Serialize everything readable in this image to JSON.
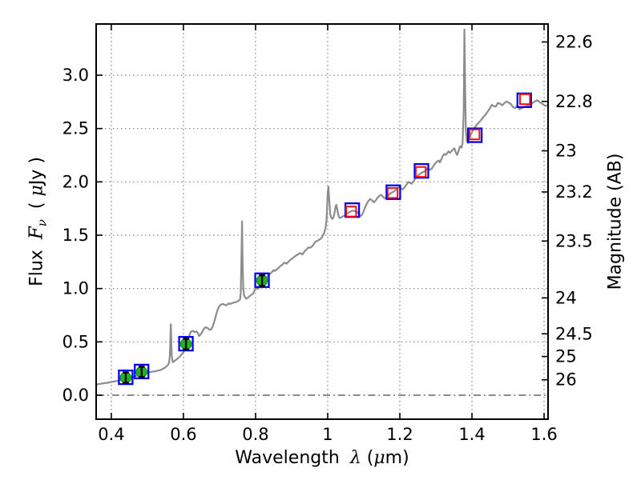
{
  "figure_title": "",
  "axes": {
    "x": {
      "label_word": "Wavelength",
      "label_symbol": "λ",
      "unit_open": "(",
      "unit_mu": "μ",
      "unit_rest": "m)",
      "tick_values": [
        0.4,
        0.6,
        0.8,
        1.0,
        1.2,
        1.4,
        1.6
      ],
      "tick_labels": [
        "0.4",
        "0.6",
        "0.8",
        "1",
        "1.2",
        "1.4",
        "1.6"
      ]
    },
    "y_left": {
      "label_word": "Flux",
      "label_symbol": "F",
      "label_symbol_sub": "ν",
      "unit_open": "( ",
      "unit_mu": "μ",
      "unit_rest": "Jy )",
      "tick_values": [
        0.0,
        0.5,
        1.0,
        1.5,
        2.0,
        2.5,
        3.0
      ],
      "tick_labels": [
        "0.0",
        "0.5",
        "1.0",
        "1.5",
        "2.0",
        "2.5",
        "3.0"
      ]
    },
    "y_right": {
      "label": "Magnitude (AB)",
      "tick_values": [
        22.6,
        22.8,
        23.0,
        23.2,
        23.5,
        24.0,
        24.5,
        25.0,
        26.0
      ],
      "tick_labels": [
        "22.6",
        "22.8",
        "23",
        "23.2",
        "23.5",
        "24",
        "24.5",
        "25",
        "26"
      ]
    }
  },
  "chart_data": {
    "type": "line",
    "title": "",
    "xlabel": "Wavelength λ (μm)",
    "ylabel": "Flux Fν ( μJy )",
    "ylabel_right": "Magnitude (AB)",
    "xlim": [
      0.358,
      1.611
    ],
    "ylim": [
      -0.225,
      3.48
    ],
    "ab_zeropoint_ujy": 23.9,
    "grid": "dotted at major ticks, dash-dot line at flux = 0",
    "legend": "none",
    "colors": {
      "spectrum": "#8c8c8c",
      "template_square": "#0000f0",
      "observed_square": "#ff0000",
      "detection_point": "#1db41d",
      "error_bar": "#000000",
      "grid_line": "#8a8a8a",
      "zero_line": "#666666",
      "spine": "#000000"
    },
    "series": [
      {
        "name": "model-spectrum",
        "type": "line",
        "color": "#8c8c8c",
        "points": [
          [
            0.358,
            0.1
          ],
          [
            0.37,
            0.107
          ],
          [
            0.382,
            0.113
          ],
          [
            0.394,
            0.119
          ],
          [
            0.406,
            0.127
          ],
          [
            0.418,
            0.134
          ],
          [
            0.43,
            0.145
          ],
          [
            0.442,
            0.158
          ],
          [
            0.454,
            0.168
          ],
          [
            0.466,
            0.178
          ],
          [
            0.478,
            0.19
          ],
          [
            0.49,
            0.203
          ],
          [
            0.502,
            0.212
          ],
          [
            0.514,
            0.22
          ],
          [
            0.526,
            0.227
          ],
          [
            0.538,
            0.238
          ],
          [
            0.55,
            0.26
          ],
          [
            0.556,
            0.278
          ],
          [
            0.56,
            0.3
          ],
          [
            0.5625,
            0.37
          ],
          [
            0.565,
            0.665
          ],
          [
            0.5675,
            0.38
          ],
          [
            0.57,
            0.31
          ],
          [
            0.574,
            0.318
          ],
          [
            0.578,
            0.328
          ],
          [
            0.582,
            0.338
          ],
          [
            0.586,
            0.35
          ],
          [
            0.59,
            0.362
          ],
          [
            0.594,
            0.378
          ],
          [
            0.598,
            0.394
          ],
          [
            0.602,
            0.412
          ],
          [
            0.605,
            0.432
          ],
          [
            0.608,
            0.455
          ],
          [
            0.611,
            0.49
          ],
          [
            0.614,
            0.53
          ],
          [
            0.617,
            0.565
          ],
          [
            0.62,
            0.59
          ],
          [
            0.624,
            0.603
          ],
          [
            0.628,
            0.6
          ],
          [
            0.632,
            0.592
          ],
          [
            0.636,
            0.598
          ],
          [
            0.64,
            0.585
          ],
          [
            0.643,
            0.556
          ],
          [
            0.646,
            0.562
          ],
          [
            0.65,
            0.58
          ],
          [
            0.654,
            0.605
          ],
          [
            0.658,
            0.628
          ],
          [
            0.662,
            0.637
          ],
          [
            0.666,
            0.632
          ],
          [
            0.67,
            0.62
          ],
          [
            0.674,
            0.612
          ],
          [
            0.678,
            0.622
          ],
          [
            0.682,
            0.65
          ],
          [
            0.686,
            0.695
          ],
          [
            0.69,
            0.745
          ],
          [
            0.694,
            0.792
          ],
          [
            0.698,
            0.825
          ],
          [
            0.702,
            0.843
          ],
          [
            0.706,
            0.853
          ],
          [
            0.71,
            0.855
          ],
          [
            0.714,
            0.848
          ],
          [
            0.718,
            0.842
          ],
          [
            0.722,
            0.852
          ],
          [
            0.726,
            0.86
          ],
          [
            0.73,
            0.855
          ],
          [
            0.734,
            0.862
          ],
          [
            0.738,
            0.867
          ],
          [
            0.742,
            0.87
          ],
          [
            0.746,
            0.873
          ],
          [
            0.75,
            0.88
          ],
          [
            0.754,
            0.89
          ],
          [
            0.757,
            0.898
          ],
          [
            0.759,
            0.96
          ],
          [
            0.761,
            1.3
          ],
          [
            0.7625,
            1.63
          ],
          [
            0.764,
            1.28
          ],
          [
            0.766,
            1.01
          ],
          [
            0.768,
            0.94
          ],
          [
            0.771,
            0.916
          ],
          [
            0.774,
            0.905
          ],
          [
            0.778,
            0.912
          ],
          [
            0.782,
            0.924
          ],
          [
            0.786,
            0.936
          ],
          [
            0.79,
            0.945
          ],
          [
            0.794,
            0.958
          ],
          [
            0.798,
            0.986
          ],
          [
            0.802,
            1.004
          ],
          [
            0.806,
            0.996
          ],
          [
            0.81,
            1.008
          ],
          [
            0.814,
            1.022
          ],
          [
            0.818,
            1.038
          ],
          [
            0.822,
            1.055
          ],
          [
            0.826,
            1.075
          ],
          [
            0.83,
            1.098
          ],
          [
            0.834,
            1.12
          ],
          [
            0.838,
            1.135
          ],
          [
            0.842,
            1.143
          ],
          [
            0.846,
            1.158
          ],
          [
            0.85,
            1.173
          ],
          [
            0.854,
            1.165
          ],
          [
            0.858,
            1.178
          ],
          [
            0.862,
            1.188
          ],
          [
            0.866,
            1.202
          ],
          [
            0.87,
            1.215
          ],
          [
            0.874,
            1.222
          ],
          [
            0.878,
            1.238
          ],
          [
            0.882,
            1.243
          ],
          [
            0.886,
            1.232
          ],
          [
            0.89,
            1.248
          ],
          [
            0.894,
            1.262
          ],
          [
            0.898,
            1.272
          ],
          [
            0.902,
            1.283
          ],
          [
            0.906,
            1.293
          ],
          [
            0.91,
            1.305
          ],
          [
            0.914,
            1.313
          ],
          [
            0.918,
            1.32
          ],
          [
            0.922,
            1.332
          ],
          [
            0.926,
            1.328
          ],
          [
            0.93,
            1.32
          ],
          [
            0.934,
            1.34
          ],
          [
            0.938,
            1.357
          ],
          [
            0.942,
            1.368
          ],
          [
            0.946,
            1.385
          ],
          [
            0.95,
            1.382
          ],
          [
            0.954,
            1.388
          ],
          [
            0.958,
            1.4
          ],
          [
            0.962,
            1.42
          ],
          [
            0.966,
            1.437
          ],
          [
            0.97,
            1.446
          ],
          [
            0.974,
            1.452
          ],
          [
            0.978,
            1.462
          ],
          [
            0.982,
            1.472
          ],
          [
            0.986,
            1.492
          ],
          [
            0.99,
            1.52
          ],
          [
            0.994,
            1.565
          ],
          [
            0.997,
            1.65
          ],
          [
            1.0,
            1.9
          ],
          [
            1.002,
            1.955
          ],
          [
            1.004,
            1.84
          ],
          [
            1.007,
            1.7
          ],
          [
            1.01,
            1.662
          ],
          [
            1.013,
            1.652
          ],
          [
            1.016,
            1.668
          ],
          [
            1.019,
            1.71
          ],
          [
            1.022,
            1.77
          ],
          [
            1.024,
            1.785
          ],
          [
            1.027,
            1.735
          ],
          [
            1.03,
            1.68
          ],
          [
            1.033,
            1.662
          ],
          [
            1.037,
            1.666
          ],
          [
            1.041,
            1.674
          ],
          [
            1.046,
            1.684
          ],
          [
            1.051,
            1.697
          ],
          [
            1.056,
            1.708
          ],
          [
            1.061,
            1.718
          ],
          [
            1.066,
            1.726
          ],
          [
            1.071,
            1.73
          ],
          [
            1.076,
            1.726
          ],
          [
            1.081,
            1.718
          ],
          [
            1.086,
            1.7
          ],
          [
            1.091,
            1.678
          ],
          [
            1.095,
            1.692
          ],
          [
            1.099,
            1.72
          ],
          [
            1.103,
            1.755
          ],
          [
            1.108,
            1.793
          ],
          [
            1.113,
            1.822
          ],
          [
            1.118,
            1.84
          ],
          [
            1.123,
            1.825
          ],
          [
            1.128,
            1.808
          ],
          [
            1.133,
            1.825
          ],
          [
            1.138,
            1.85
          ],
          [
            1.143,
            1.868
          ],
          [
            1.148,
            1.878
          ],
          [
            1.153,
            1.862
          ],
          [
            1.158,
            1.846
          ],
          [
            1.163,
            1.852
          ],
          [
            1.168,
            1.872
          ],
          [
            1.173,
            1.89
          ],
          [
            1.178,
            1.9
          ],
          [
            1.183,
            1.908
          ],
          [
            1.188,
            1.922
          ],
          [
            1.193,
            1.938
          ],
          [
            1.198,
            1.952
          ],
          [
            1.203,
            1.938
          ],
          [
            1.208,
            1.93
          ],
          [
            1.213,
            1.948
          ],
          [
            1.218,
            1.972
          ],
          [
            1.223,
            1.998
          ],
          [
            1.228,
            1.992
          ],
          [
            1.233,
            1.982
          ],
          [
            1.238,
            2.008
          ],
          [
            1.243,
            2.032
          ],
          [
            1.248,
            2.052
          ],
          [
            1.253,
            2.068
          ],
          [
            1.258,
            2.08
          ],
          [
            1.263,
            2.09
          ],
          [
            1.268,
            2.098
          ],
          [
            1.273,
            2.112
          ],
          [
            1.278,
            2.128
          ],
          [
            1.283,
            2.112
          ],
          [
            1.288,
            2.122
          ],
          [
            1.293,
            2.148
          ],
          [
            1.298,
            2.172
          ],
          [
            1.303,
            2.192
          ],
          [
            1.308,
            2.2
          ],
          [
            1.311,
            2.182
          ],
          [
            1.315,
            2.212
          ],
          [
            1.319,
            2.242
          ],
          [
            1.323,
            2.262
          ],
          [
            1.327,
            2.252
          ],
          [
            1.331,
            2.268
          ],
          [
            1.335,
            2.285
          ],
          [
            1.339,
            2.272
          ],
          [
            1.343,
            2.288
          ],
          [
            1.347,
            2.302
          ],
          [
            1.351,
            2.315
          ],
          [
            1.355,
            2.278
          ],
          [
            1.359,
            2.252
          ],
          [
            1.363,
            2.292
          ],
          [
            1.367,
            2.335
          ],
          [
            1.371,
            2.32
          ],
          [
            1.374,
            2.36
          ],
          [
            1.377,
            2.65
          ],
          [
            1.379,
            3.43
          ],
          [
            1.381,
            2.9
          ],
          [
            1.383,
            2.48
          ],
          [
            1.386,
            2.38
          ],
          [
            1.389,
            2.365
          ],
          [
            1.392,
            2.398
          ],
          [
            1.396,
            2.438
          ],
          [
            1.4,
            2.468
          ],
          [
            1.405,
            2.498
          ],
          [
            1.41,
            2.52
          ],
          [
            1.415,
            2.542
          ],
          [
            1.42,
            2.56
          ],
          [
            1.426,
            2.582
          ],
          [
            1.432,
            2.61
          ],
          [
            1.438,
            2.632
          ],
          [
            1.444,
            2.66
          ],
          [
            1.45,
            2.692
          ],
          [
            1.455,
            2.722
          ],
          [
            1.46,
            2.712
          ],
          [
            1.466,
            2.705
          ],
          [
            1.472,
            2.74
          ],
          [
            1.478,
            2.732
          ],
          [
            1.484,
            2.718
          ],
          [
            1.49,
            2.738
          ],
          [
            1.496,
            2.754
          ],
          [
            1.502,
            2.742
          ],
          [
            1.508,
            2.73
          ],
          [
            1.514,
            2.7
          ],
          [
            1.52,
            2.692
          ],
          [
            1.526,
            2.715
          ],
          [
            1.532,
            2.682
          ],
          [
            1.538,
            2.69
          ],
          [
            1.544,
            2.7
          ],
          [
            1.55,
            2.71
          ],
          [
            1.556,
            2.716
          ],
          [
            1.562,
            2.726
          ],
          [
            1.568,
            2.74
          ],
          [
            1.574,
            2.752
          ],
          [
            1.58,
            2.765
          ],
          [
            1.586,
            2.752
          ],
          [
            1.592,
            2.738
          ],
          [
            1.598,
            2.725
          ],
          [
            1.604,
            2.712
          ],
          [
            1.611,
            2.72
          ]
        ]
      },
      {
        "name": "template-photometry-blue-open-squares",
        "type": "scatter",
        "marker": "open-square",
        "color": "#0000f0",
        "x": [
          0.44,
          0.484,
          0.607,
          0.818,
          1.068,
          1.182,
          1.26,
          1.408,
          1.545
        ],
        "y": [
          0.168,
          0.222,
          0.483,
          1.078,
          1.735,
          1.903,
          2.103,
          2.437,
          2.765
        ]
      },
      {
        "name": "observed-photometry-red-open-squares",
        "type": "scatter",
        "marker": "open-square",
        "color": "#ff0000",
        "x": [
          1.065,
          1.18,
          1.258,
          1.407,
          1.547
        ],
        "y": [
          1.722,
          1.896,
          2.093,
          2.445,
          2.775
        ]
      },
      {
        "name": "detected-photometry-green-points-with-errors",
        "type": "scatter",
        "marker": "filled-circle-with-errorbar",
        "color": "#1db41d",
        "x": [
          0.44,
          0.484,
          0.607,
          0.818
        ],
        "y": [
          0.165,
          0.218,
          0.48,
          1.075
        ],
        "yerr": [
          0.048,
          0.048,
          0.05,
          0.05
        ]
      }
    ]
  }
}
